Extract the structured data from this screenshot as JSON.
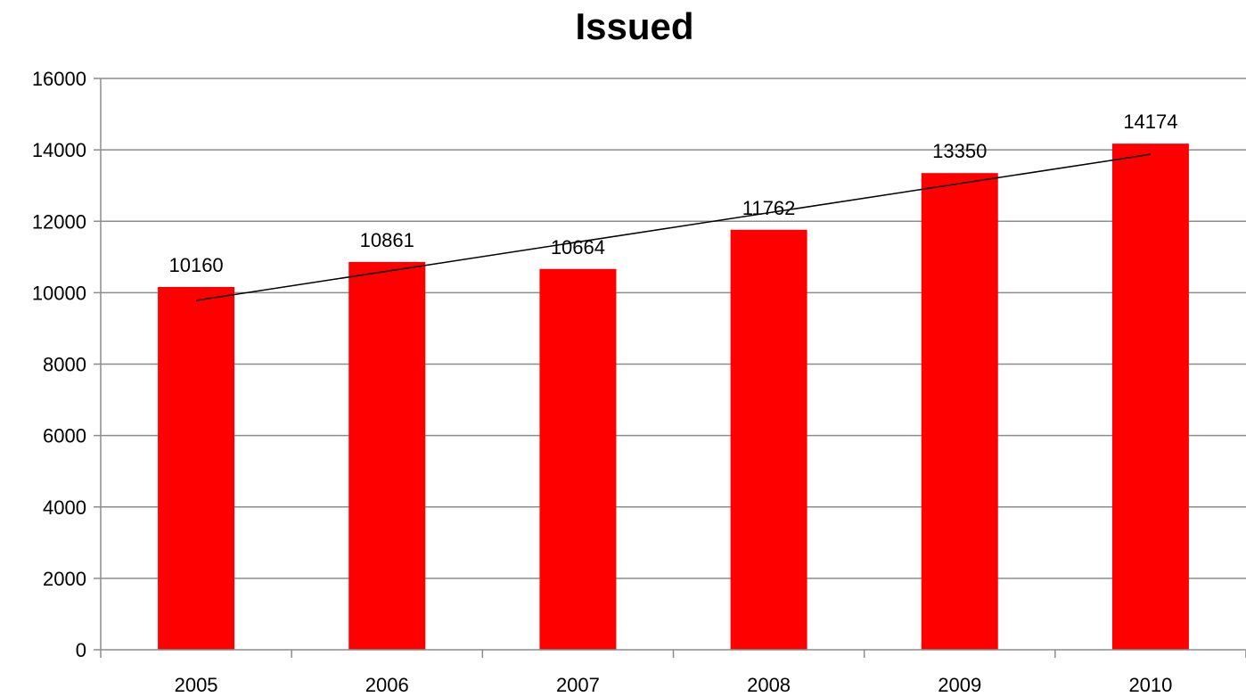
{
  "chart_data": {
    "type": "bar",
    "title": "Issued",
    "categories": [
      "2005",
      "2006",
      "2007",
      "2008",
      "2009",
      "2010"
    ],
    "series": [
      {
        "values": [
          10160,
          10861,
          10664,
          11762,
          13350,
          14174
        ]
      }
    ],
    "data_labels": [
      "10160",
      "10861",
      "10664",
      "11762",
      "13350",
      "14174"
    ],
    "ylim": [
      0,
      16000
    ],
    "yticks": [
      0,
      2000,
      4000,
      6000,
      8000,
      10000,
      12000,
      14000,
      16000
    ],
    "ytick_labels": [
      "0",
      "2000",
      "4000",
      "6000",
      "8000",
      "10000",
      "12000",
      "14000",
      "16000"
    ],
    "grid": true,
    "legend": "none",
    "trendline": {
      "type": "linear",
      "color": "#000000"
    },
    "bar_color": "#ff0000"
  }
}
